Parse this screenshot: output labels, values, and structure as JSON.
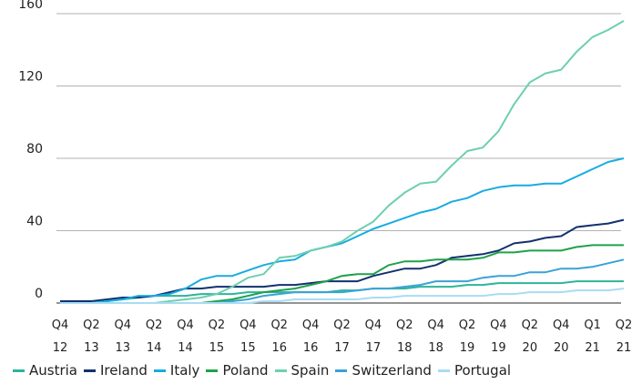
{
  "chart_data": {
    "type": "line",
    "categories": [
      "Q4 12",
      null,
      "Q2 13",
      null,
      "Q4 13",
      null,
      "Q2 14",
      null,
      "Q4 14",
      null,
      "Q2 15",
      null,
      "Q4 15",
      null,
      "Q2 16",
      null,
      "Q4 16",
      null,
      "Q2 17",
      null,
      "Q4 17",
      null,
      "Q2 18",
      null,
      "Q4 18",
      null,
      "Q2 19",
      null,
      "Q4 19",
      null,
      "Q2 20",
      null,
      "Q4 20",
      null,
      "Q1 21",
      null,
      "Q2 21"
    ],
    "ylim": [
      0,
      160
    ],
    "yticks": [
      0,
      40,
      80,
      120,
      160
    ],
    "grid": true,
    "legend": "bottom",
    "series": [
      {
        "name": "Austria",
        "color": "#2cb59b",
        "values": [
          0,
          0,
          0,
          1,
          2,
          3,
          4,
          4,
          4,
          5,
          5,
          5,
          6,
          6,
          6,
          6,
          6,
          6,
          7,
          7,
          8,
          8,
          8,
          9,
          9,
          9,
          10,
          10,
          11,
          11,
          11,
          11,
          11,
          12,
          12,
          12,
          12
        ]
      },
      {
        "name": "Ireland",
        "color": "#12316e",
        "values": [
          1,
          1,
          1,
          2,
          3,
          3,
          4,
          6,
          8,
          8,
          9,
          9,
          9,
          9,
          10,
          10,
          11,
          12,
          12,
          12,
          15,
          17,
          19,
          19,
          21,
          25,
          26,
          27,
          29,
          33,
          34,
          36,
          37,
          42,
          43,
          44,
          46
        ]
      },
      {
        "name": "Italy",
        "color": "#18ace0",
        "values": [
          0,
          0,
          0,
          1,
          2,
          4,
          4,
          5,
          8,
          13,
          15,
          15,
          18,
          21,
          23,
          24,
          29,
          31,
          33,
          37,
          41,
          44,
          47,
          50,
          52,
          56,
          58,
          62,
          64,
          65,
          65,
          66,
          66,
          70,
          74,
          78,
          80
        ]
      },
      {
        "name": "Poland",
        "color": "#1ea24a",
        "values": [
          0,
          0,
          0,
          0,
          0,
          0,
          0,
          0,
          0,
          0,
          1,
          2,
          4,
          6,
          7,
          8,
          10,
          12,
          15,
          16,
          16,
          21,
          23,
          23,
          24,
          24,
          24,
          25,
          28,
          28,
          29,
          29,
          29,
          31,
          32,
          32,
          32
        ]
      },
      {
        "name": "Spain",
        "color": "#6dcfb0",
        "values": [
          0,
          0,
          0,
          0,
          0,
          0,
          0,
          1,
          2,
          3,
          5,
          9,
          14,
          16,
          25,
          26,
          29,
          31,
          34,
          40,
          45,
          54,
          61,
          66,
          67,
          76,
          84,
          86,
          95,
          110,
          122,
          127,
          129,
          139,
          147,
          151,
          156
        ]
      },
      {
        "name": "Switzerland",
        "color": "#3aa2d6",
        "values": [
          0,
          0,
          0,
          0,
          0,
          0,
          0,
          0,
          0,
          0,
          0,
          1,
          2,
          4,
          5,
          6,
          6,
          6,
          6,
          7,
          8,
          8,
          9,
          10,
          12,
          12,
          12,
          14,
          15,
          15,
          17,
          17,
          19,
          19,
          20,
          22,
          24
        ]
      },
      {
        "name": "Portugal",
        "color": "#a9dcf3",
        "values": [
          0,
          0,
          0,
          0,
          0,
          0,
          0,
          0,
          0,
          0,
          0,
          0,
          0,
          1,
          1,
          2,
          2,
          2,
          2,
          2,
          3,
          3,
          4,
          4,
          4,
          4,
          4,
          4,
          5,
          5,
          6,
          6,
          6,
          7,
          7,
          7,
          8
        ]
      }
    ]
  }
}
